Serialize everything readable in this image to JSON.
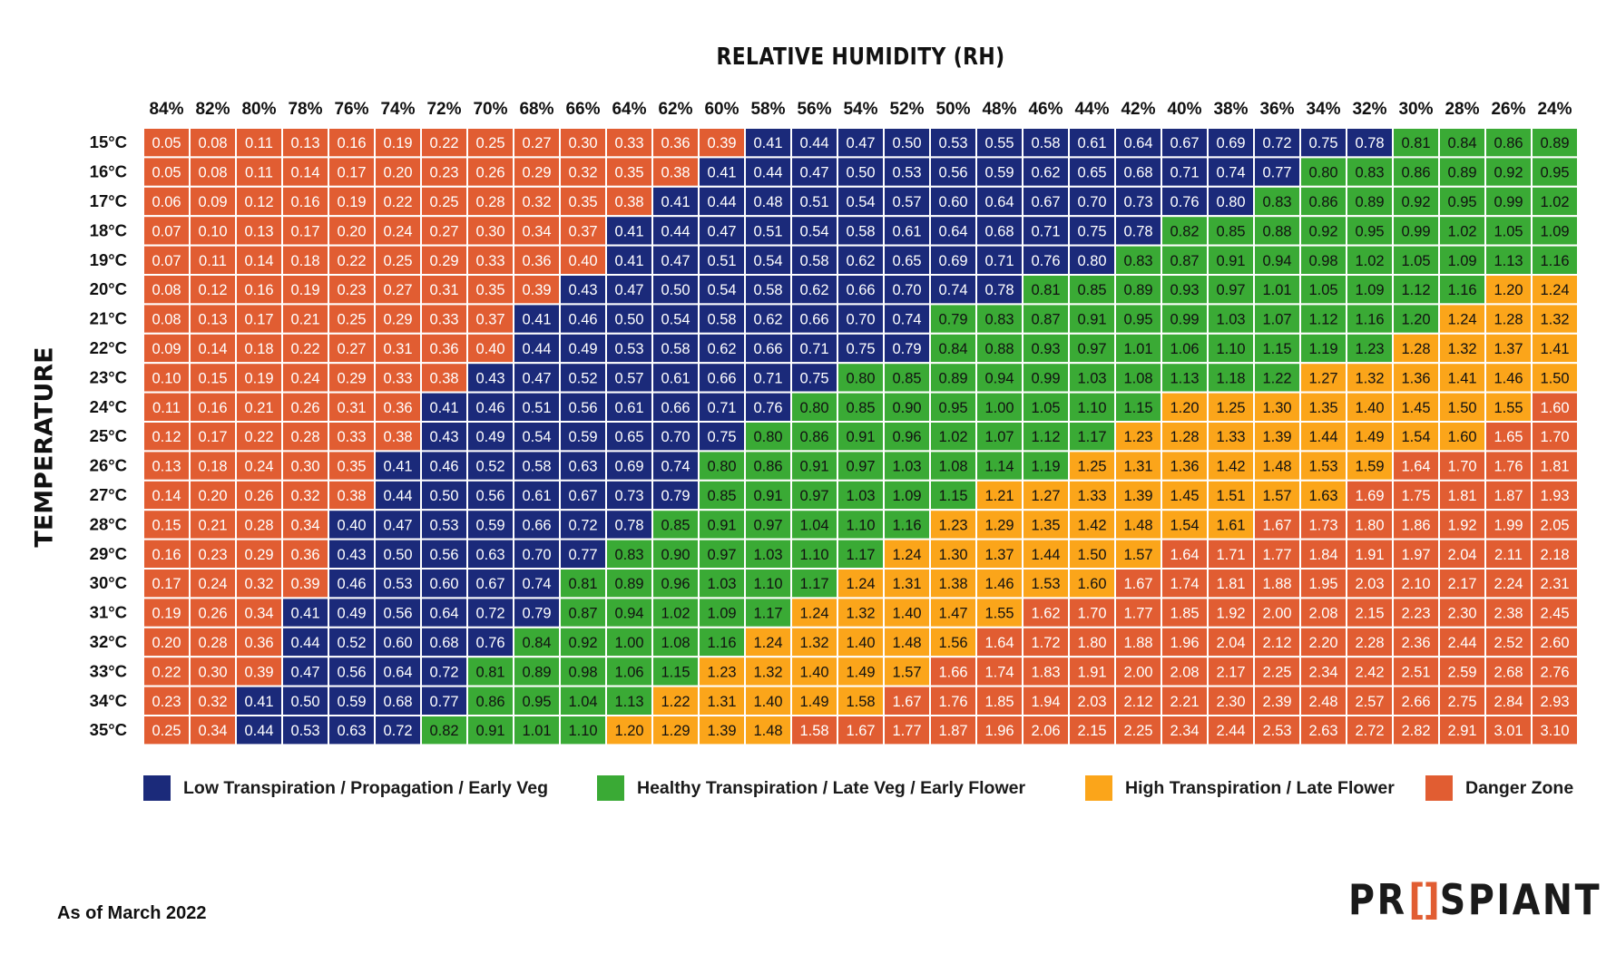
{
  "chart_data": {
    "type": "heatmap",
    "title": "RELATIVE HUMIDITY (RH)",
    "ylabel": "TEMPERATURE",
    "x_categories": [
      "84%",
      "82%",
      "80%",
      "78%",
      "76%",
      "74%",
      "72%",
      "70%",
      "68%",
      "66%",
      "64%",
      "62%",
      "60%",
      "58%",
      "56%",
      "54%",
      "52%",
      "50%",
      "48%",
      "46%",
      "44%",
      "42%",
      "40%",
      "38%",
      "36%",
      "34%",
      "32%",
      "30%",
      "28%",
      "26%",
      "24%"
    ],
    "y_categories": [
      "15°C",
      "16°C",
      "17°C",
      "18°C",
      "19°C",
      "20°C",
      "21°C",
      "22°C",
      "23°C",
      "24°C",
      "25°C",
      "26°C",
      "27°C",
      "28°C",
      "29°C",
      "30°C",
      "31°C",
      "32°C",
      "33°C",
      "34°C",
      "35°C"
    ],
    "values": [
      [
        "0.05",
        "0.08",
        "0.11",
        "0.13",
        "0.16",
        "0.19",
        "0.22",
        "0.25",
        "0.27",
        "0.30",
        "0.33",
        "0.36",
        "0.39",
        "0.41",
        "0.44",
        "0.47",
        "0.50",
        "0.53",
        "0.55",
        "0.58",
        "0.61",
        "0.64",
        "0.67",
        "0.69",
        "0.72",
        "0.75",
        "0.78",
        "0.81",
        "0.84",
        "0.86",
        "0.89"
      ],
      [
        "0.05",
        "0.08",
        "0.11",
        "0.14",
        "0.17",
        "0.20",
        "0.23",
        "0.26",
        "0.29",
        "0.32",
        "0.35",
        "0.38",
        "0.41",
        "0.44",
        "0.47",
        "0.50",
        "0.53",
        "0.56",
        "0.59",
        "0.62",
        "0.65",
        "0.68",
        "0.71",
        "0.74",
        "0.77",
        "0.80",
        "0.83",
        "0.86",
        "0.89",
        "0.92",
        "0.95"
      ],
      [
        "0.06",
        "0.09",
        "0.12",
        "0.16",
        "0.19",
        "0.22",
        "0.25",
        "0.28",
        "0.32",
        "0.35",
        "0.38",
        "0.41",
        "0.44",
        "0.48",
        "0.51",
        "0.54",
        "0.57",
        "0.60",
        "0.64",
        "0.67",
        "0.70",
        "0.73",
        "0.76",
        "0.80",
        "0.83",
        "0.86",
        "0.89",
        "0.92",
        "0.95",
        "0.99",
        "1.02"
      ],
      [
        "0.07",
        "0.10",
        "0.13",
        "0.17",
        "0.20",
        "0.24",
        "0.27",
        "0.30",
        "0.34",
        "0.37",
        "0.41",
        "0.44",
        "0.47",
        "0.51",
        "0.54",
        "0.58",
        "0.61",
        "0.64",
        "0.68",
        "0.71",
        "0.75",
        "0.78",
        "0.82",
        "0.85",
        "0.88",
        "0.92",
        "0.95",
        "0.99",
        "1.02",
        "1.05",
        "1.09"
      ],
      [
        "0.07",
        "0.11",
        "0.14",
        "0.18",
        "0.22",
        "0.25",
        "0.29",
        "0.33",
        "0.36",
        "0.40",
        "0.41",
        "0.47",
        "0.51",
        "0.54",
        "0.58",
        "0.62",
        "0.65",
        "0.69",
        "0.71",
        "0.76",
        "0.80",
        "0.83",
        "0.87",
        "0.91",
        "0.94",
        "0.98",
        "1.02",
        "1.05",
        "1.09",
        "1.13",
        "1.16"
      ],
      [
        "0.08",
        "0.12",
        "0.16",
        "0.19",
        "0.23",
        "0.27",
        "0.31",
        "0.35",
        "0.39",
        "0.43",
        "0.47",
        "0.50",
        "0.54",
        "0.58",
        "0.62",
        "0.66",
        "0.70",
        "0.74",
        "0.78",
        "0.81",
        "0.85",
        "0.89",
        "0.93",
        "0.97",
        "1.01",
        "1.05",
        "1.09",
        "1.12",
        "1.16",
        "1.20",
        "1.24"
      ],
      [
        "0.08",
        "0.13",
        "0.17",
        "0.21",
        "0.25",
        "0.29",
        "0.33",
        "0.37",
        "0.41",
        "0.46",
        "0.50",
        "0.54",
        "0.58",
        "0.62",
        "0.66",
        "0.70",
        "0.74",
        "0.79",
        "0.83",
        "0.87",
        "0.91",
        "0.95",
        "0.99",
        "1.03",
        "1.07",
        "1.12",
        "1.16",
        "1.20",
        "1.24",
        "1.28",
        "1.32"
      ],
      [
        "0.09",
        "0.14",
        "0.18",
        "0.22",
        "0.27",
        "0.31",
        "0.36",
        "0.40",
        "0.44",
        "0.49",
        "0.53",
        "0.58",
        "0.62",
        "0.66",
        "0.71",
        "0.75",
        "0.79",
        "0.84",
        "0.88",
        "0.93",
        "0.97",
        "1.01",
        "1.06",
        "1.10",
        "1.15",
        "1.19",
        "1.23",
        "1.28",
        "1.32",
        "1.37",
        "1.41"
      ],
      [
        "0.10",
        "0.15",
        "0.19",
        "0.24",
        "0.29",
        "0.33",
        "0.38",
        "0.43",
        "0.47",
        "0.52",
        "0.57",
        "0.61",
        "0.66",
        "0.71",
        "0.75",
        "0.80",
        "0.85",
        "0.89",
        "0.94",
        "0.99",
        "1.03",
        "1.08",
        "1.13",
        "1.18",
        "1.22",
        "1.27",
        "1.32",
        "1.36",
        "1.41",
        "1.46",
        "1.50"
      ],
      [
        "0.11",
        "0.16",
        "0.21",
        "0.26",
        "0.31",
        "0.36",
        "0.41",
        "0.46",
        "0.51",
        "0.56",
        "0.61",
        "0.66",
        "0.71",
        "0.76",
        "0.80",
        "0.85",
        "0.90",
        "0.95",
        "1.00",
        "1.05",
        "1.10",
        "1.15",
        "1.20",
        "1.25",
        "1.30",
        "1.35",
        "1.40",
        "1.45",
        "1.50",
        "1.55",
        "1.60"
      ],
      [
        "0.12",
        "0.17",
        "0.22",
        "0.28",
        "0.33",
        "0.38",
        "0.43",
        "0.49",
        "0.54",
        "0.59",
        "0.65",
        "0.70",
        "0.75",
        "0.80",
        "0.86",
        "0.91",
        "0.96",
        "1.02",
        "1.07",
        "1.12",
        "1.17",
        "1.23",
        "1.28",
        "1.33",
        "1.39",
        "1.44",
        "1.49",
        "1.54",
        "1.60",
        "1.65",
        "1.70"
      ],
      [
        "0.13",
        "0.18",
        "0.24",
        "0.30",
        "0.35",
        "0.41",
        "0.46",
        "0.52",
        "0.58",
        "0.63",
        "0.69",
        "0.74",
        "0.80",
        "0.86",
        "0.91",
        "0.97",
        "1.03",
        "1.08",
        "1.14",
        "1.19",
        "1.25",
        "1.31",
        "1.36",
        "1.42",
        "1.48",
        "1.53",
        "1.59",
        "1.64",
        "1.70",
        "1.76",
        "1.81"
      ],
      [
        "0.14",
        "0.20",
        "0.26",
        "0.32",
        "0.38",
        "0.44",
        "0.50",
        "0.56",
        "0.61",
        "0.67",
        "0.73",
        "0.79",
        "0.85",
        "0.91",
        "0.97",
        "1.03",
        "1.09",
        "1.15",
        "1.21",
        "1.27",
        "1.33",
        "1.39",
        "1.45",
        "1.51",
        "1.57",
        "1.63",
        "1.69",
        "1.75",
        "1.81",
        "1.87",
        "1.93"
      ],
      [
        "0.15",
        "0.21",
        "0.28",
        "0.34",
        "0.40",
        "0.47",
        "0.53",
        "0.59",
        "0.66",
        "0.72",
        "0.78",
        "0.85",
        "0.91",
        "0.97",
        "1.04",
        "1.10",
        "1.16",
        "1.23",
        "1.29",
        "1.35",
        "1.42",
        "1.48",
        "1.54",
        "1.61",
        "1.67",
        "1.73",
        "1.80",
        "1.86",
        "1.92",
        "1.99",
        "2.05"
      ],
      [
        "0.16",
        "0.23",
        "0.29",
        "0.36",
        "0.43",
        "0.50",
        "0.56",
        "0.63",
        "0.70",
        "0.77",
        "0.83",
        "0.90",
        "0.97",
        "1.03",
        "1.10",
        "1.17",
        "1.24",
        "1.30",
        "1.37",
        "1.44",
        "1.50",
        "1.57",
        "1.64",
        "1.71",
        "1.77",
        "1.84",
        "1.91",
        "1.97",
        "2.04",
        "2.11",
        "2.18"
      ],
      [
        "0.17",
        "0.24",
        "0.32",
        "0.39",
        "0.46",
        "0.53",
        "0.60",
        "0.67",
        "0.74",
        "0.81",
        "0.89",
        "0.96",
        "1.03",
        "1.10",
        "1.17",
        "1.24",
        "1.31",
        "1.38",
        "1.46",
        "1.53",
        "1.60",
        "1.67",
        "1.74",
        "1.81",
        "1.88",
        "1.95",
        "2.03",
        "2.10",
        "2.17",
        "2.24",
        "2.31"
      ],
      [
        "0.19",
        "0.26",
        "0.34",
        "0.41",
        "0.49",
        "0.56",
        "0.64",
        "0.72",
        "0.79",
        "0.87",
        "0.94",
        "1.02",
        "1.09",
        "1.17",
        "1.24",
        "1.32",
        "1.40",
        "1.47",
        "1.55",
        "1.62",
        "1.70",
        "1.77",
        "1.85",
        "1.92",
        "2.00",
        "2.08",
        "2.15",
        "2.23",
        "2.30",
        "2.38",
        "2.45"
      ],
      [
        "0.20",
        "0.28",
        "0.36",
        "0.44",
        "0.52",
        "0.60",
        "0.68",
        "0.76",
        "0.84",
        "0.92",
        "1.00",
        "1.08",
        "1.16",
        "1.24",
        "1.32",
        "1.40",
        "1.48",
        "1.56",
        "1.64",
        "1.72",
        "1.80",
        "1.88",
        "1.96",
        "2.04",
        "2.12",
        "2.20",
        "2.28",
        "2.36",
        "2.44",
        "2.52",
        "2.60"
      ],
      [
        "0.22",
        "0.30",
        "0.39",
        "0.47",
        "0.56",
        "0.64",
        "0.72",
        "0.81",
        "0.89",
        "0.98",
        "1.06",
        "1.15",
        "1.23",
        "1.32",
        "1.40",
        "1.49",
        "1.57",
        "1.66",
        "1.74",
        "1.83",
        "1.91",
        "2.00",
        "2.08",
        "2.17",
        "2.25",
        "2.34",
        "2.42",
        "2.51",
        "2.59",
        "2.68",
        "2.76"
      ],
      [
        "0.23",
        "0.32",
        "0.41",
        "0.50",
        "0.59",
        "0.68",
        "0.77",
        "0.86",
        "0.95",
        "1.04",
        "1.13",
        "1.22",
        "1.31",
        "1.40",
        "1.49",
        "1.58",
        "1.67",
        "1.76",
        "1.85",
        "1.94",
        "2.03",
        "2.12",
        "2.21",
        "2.30",
        "2.39",
        "2.48",
        "2.57",
        "2.66",
        "2.75",
        "2.84",
        "2.93"
      ],
      [
        "0.25",
        "0.34",
        "0.44",
        "0.53",
        "0.63",
        "0.72",
        "0.82",
        "0.91",
        "1.01",
        "1.10",
        "1.20",
        "1.29",
        "1.39",
        "1.48",
        "1.58",
        "1.67",
        "1.77",
        "1.87",
        "1.96",
        "2.06",
        "2.15",
        "2.25",
        "2.34",
        "2.44",
        "2.53",
        "2.63",
        "2.72",
        "2.82",
        "2.91",
        "3.01",
        "3.10"
      ]
    ],
    "zones": [
      "DDDDDDDDDDDDDLLLLLLLLLLLLLLHHHH",
      "DDDDDDDDDDDDLLLLLLLLLLLLLHHHHHH",
      "DDDDDDDDDDDLLLLLLLLLLLLLHHHHHHH",
      "DDDDDDDDDDLLLLLLLLLLLLHHHHHHHHH",
      "DDDDDDDDDDLLLLLLLLLLLHHHHHHHHHH",
      "DDDDDDDDDLLLLLLLLLLHHHHHHHHHHTT",
      "DDDDDDDDLLLLLLLLLHHHHHHHHHHHTTT",
      "DDDDDDDDLLLLLLLLLHHHHHHHHHHTTTT",
      "DDDDDDDLLLLLLLLHHHHHHHHHHTTTTTT",
      "DDDDDDLLLLLLLLHHHHHHHHTTTTTTTTD",
      "DDDDDDLLLLLLLHHHHHHHHTTTTTTTTDD",
      "DDDDDLLLLLLLHHHHHHHHTTTTTTTDDDD",
      "DDDDDLLLLLLLHHHHHHTTTTTTTTDDDDD",
      "DDDDLLLLLLLHHHHHHTTTTTTTDDDDDDD",
      "DDDDLLLLLLHHHHHHTTTTTTDDDDDDDDD",
      "DDDDLLLLLHHHHHHTTTTTTDDDDDDDDDD",
      "DDDLLLLLLHHHHHTTTTTDDDDDDDDDDDD",
      "DDDLLLLLHHHHHTTTTTDDDDDDDDDDDDD",
      "DDDLLLLHHHHHTTTTTDDDDDDDDDDDDDD",
      "DDLLLLLHHHHTTTTTDDDDDDDDDDDDDDD",
      "DDLLLLHHHHTTTTDDDDDDDDDDDDDDDDD"
    ],
    "legend": [
      {
        "label": "Low Transpiration / Propagation / Early Veg",
        "zone": "L",
        "color": "#1b2a7a"
      },
      {
        "label": "Healthy Transpiration / Late Veg / Early Flower",
        "zone": "H",
        "color": "#3aaa35"
      },
      {
        "label": "High Transpiration / Late Flower",
        "zone": "T",
        "color": "#fba51a"
      },
      {
        "label": "Danger Zone",
        "zone": "D",
        "color": "#e15d32"
      }
    ],
    "legend_position": "bottom",
    "grid": true
  },
  "colors": {
    "low": "#1b2a7a",
    "healthy": "#3aaa35",
    "high": "#fba51a",
    "danger": "#e15d32",
    "low_text": "#ffffff",
    "healthy_text": "#111111",
    "high_text": "#111111",
    "danger_text": "#ffffff"
  },
  "footnote": "As of March 2022",
  "logo": {
    "left": "PR",
    "mid": "[]",
    "right": "SPIANT"
  }
}
